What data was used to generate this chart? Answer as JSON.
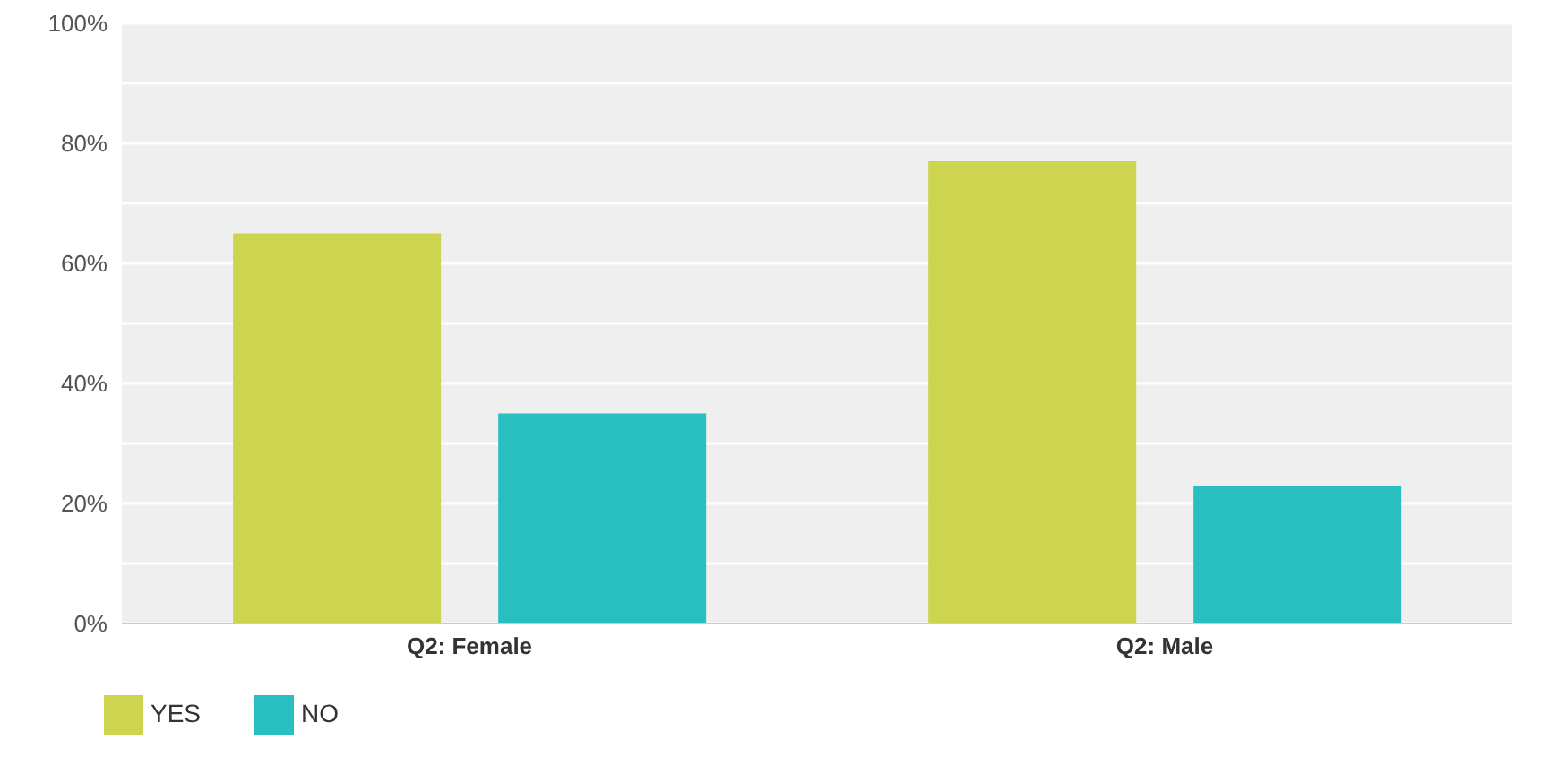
{
  "chart_data": {
    "type": "bar",
    "categories": [
      "Q2: Female",
      "Q2: Male"
    ],
    "series": [
      {
        "name": "YES",
        "color": "#cdd44f",
        "values": [
          65,
          77
        ]
      },
      {
        "name": "NO",
        "color": "#29bfc0",
        "values": [
          35,
          23
        ]
      }
    ],
    "ylim": [
      0,
      100
    ],
    "yticks": [
      {
        "value": 0,
        "label": "0%"
      },
      {
        "value": 10,
        "label": null
      },
      {
        "value": 20,
        "label": "20%"
      },
      {
        "value": 30,
        "label": null
      },
      {
        "value": 40,
        "label": "40%"
      },
      {
        "value": 50,
        "label": null
      },
      {
        "value": 60,
        "label": "60%"
      },
      {
        "value": 70,
        "label": null
      },
      {
        "value": 80,
        "label": "80%"
      },
      {
        "value": 90,
        "label": null
      },
      {
        "value": 100,
        "label": "100%"
      }
    ],
    "grid": "y",
    "legend": "bottom left"
  }
}
